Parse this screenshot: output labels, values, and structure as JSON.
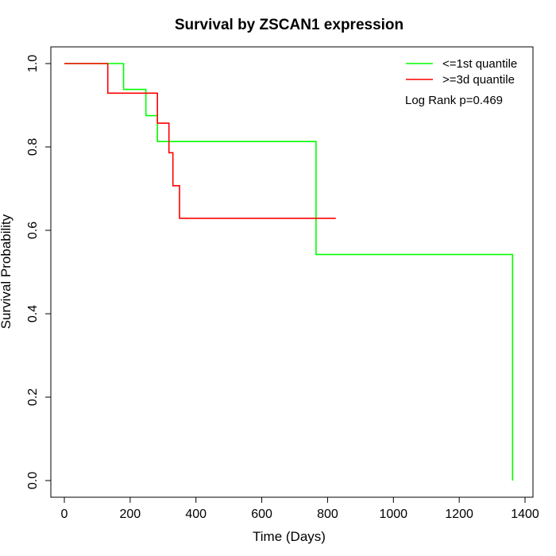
{
  "chart_data": {
    "type": "line",
    "title": "Survival by ZSCAN1 expression",
    "xlabel": "Time (Days)",
    "ylabel": "Survival Probability",
    "xlim": [
      0,
      1400
    ],
    "ylim": [
      0,
      1.0
    ],
    "xticks": [
      "0",
      "200",
      "400",
      "600",
      "800",
      "1000",
      "1200",
      "1400"
    ],
    "yticks": [
      "0.0",
      "0.2",
      "0.4",
      "0.6",
      "0.8",
      "1.0"
    ],
    "xtick_values": [
      0,
      200,
      400,
      600,
      800,
      1000,
      1200,
      1400
    ],
    "ytick_values": [
      0,
      0.2,
      0.4,
      0.6,
      0.8,
      1.0
    ],
    "grid": false,
    "legend_position": "top-right",
    "annotation": "Log Rank p=0.469",
    "series": [
      {
        "name": "<=1st quantile",
        "color": "#00ff00",
        "step": true,
        "points": [
          [
            0,
            1.0
          ],
          [
            180,
            1.0
          ],
          [
            180,
            0.938
          ],
          [
            248,
            0.938
          ],
          [
            248,
            0.875
          ],
          [
            283,
            0.875
          ],
          [
            283,
            0.813
          ],
          [
            765,
            0.813
          ],
          [
            765,
            0.542
          ],
          [
            1362,
            0.542
          ],
          [
            1362,
            0.0
          ]
        ]
      },
      {
        "name": ">=3d quantile",
        "color": "#ff0000",
        "step": true,
        "points": [
          [
            0,
            1.0
          ],
          [
            132,
            1.0
          ],
          [
            132,
            0.929
          ],
          [
            283,
            0.929
          ],
          [
            283,
            0.857
          ],
          [
            318,
            0.857
          ],
          [
            318,
            0.786
          ],
          [
            330,
            0.786
          ],
          [
            330,
            0.707
          ],
          [
            350,
            0.707
          ],
          [
            350,
            0.629
          ],
          [
            825,
            0.629
          ]
        ]
      }
    ]
  }
}
